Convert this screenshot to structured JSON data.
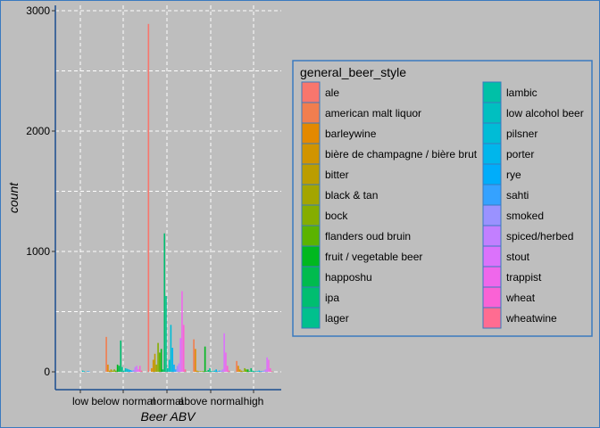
{
  "chart_data": {
    "type": "bar",
    "xlabel": "Beer ABV",
    "ylabel": "count",
    "categories": [
      "low",
      "below normal",
      "normal",
      "above normal",
      "high"
    ],
    "ylim": [
      0,
      3000
    ],
    "y_ticks": [
      0,
      1000,
      2000,
      3000
    ],
    "grid": true,
    "legend_title": "general_beer_style",
    "legend_position": "right",
    "series": [
      {
        "name": "ale",
        "color": "#F8766D",
        "values": [
          0,
          0,
          2890,
          0,
          0
        ]
      },
      {
        "name": "american malt liquor",
        "color": "#F17E4F",
        "values": [
          0,
          290,
          0,
          270,
          90
        ]
      },
      {
        "name": "barleywine",
        "color": "#E38900",
        "values": [
          0,
          60,
          30,
          190,
          50
        ]
      },
      {
        "name": "bière de champagne / bière brut",
        "color": "#D09400",
        "values": [
          0,
          10,
          100,
          10,
          20
        ]
      },
      {
        "name": "bitter",
        "color": "#BB9D00",
        "values": [
          0,
          20,
          150,
          5,
          10
        ]
      },
      {
        "name": "black & tan",
        "color": "#A3A500",
        "values": [
          0,
          10,
          60,
          5,
          5
        ]
      },
      {
        "name": "bock",
        "color": "#85AD00",
        "values": [
          0,
          20,
          240,
          5,
          30
        ]
      },
      {
        "name": "flanders oud bruin",
        "color": "#5BB300",
        "values": [
          0,
          10,
          160,
          5,
          20
        ]
      },
      {
        "name": "fruit / vegetable beer",
        "color": "#00B81F",
        "values": [
          0,
          60,
          190,
          210,
          20
        ]
      },
      {
        "name": "happoshu",
        "color": "#00BB4E",
        "values": [
          0,
          50,
          20,
          5,
          5
        ]
      },
      {
        "name": "ipa",
        "color": "#00BE70",
        "values": [
          0,
          260,
          1150,
          15,
          30
        ]
      },
      {
        "name": "lager",
        "color": "#00C08D",
        "values": [
          0,
          40,
          630,
          30,
          10
        ]
      },
      {
        "name": "lambic",
        "color": "#00C0A7",
        "values": [
          0,
          10,
          30,
          5,
          5
        ]
      },
      {
        "name": "low alcohol beer",
        "color": "#00BFC0",
        "values": [
          10,
          30,
          100,
          5,
          5
        ]
      },
      {
        "name": "pilsner",
        "color": "#00BCD6",
        "values": [
          5,
          25,
          390,
          10,
          5
        ]
      },
      {
        "name": "porter",
        "color": "#00B6EB",
        "values": [
          0,
          20,
          200,
          20,
          10
        ]
      },
      {
        "name": "rye",
        "color": "#00ADFA",
        "values": [
          5,
          15,
          60,
          5,
          5
        ]
      },
      {
        "name": "sahti",
        "color": "#35A2FF",
        "values": [
          5,
          10,
          20,
          10,
          5
        ]
      },
      {
        "name": "smoked",
        "color": "#9A92FF",
        "values": [
          0,
          15,
          50,
          10,
          10
        ]
      },
      {
        "name": "spiced/herbed",
        "color": "#C27FFF",
        "values": [
          0,
          40,
          70,
          20,
          20
        ]
      },
      {
        "name": "stout",
        "color": "#DB72FB",
        "values": [
          0,
          50,
          280,
          320,
          120
        ]
      },
      {
        "name": "trappist",
        "color": "#EF67EB",
        "values": [
          0,
          20,
          670,
          160,
          100
        ]
      },
      {
        "name": "wheat",
        "color": "#FA62D5",
        "values": [
          0,
          50,
          390,
          50,
          30
        ]
      },
      {
        "name": "wheatwine",
        "color": "#FF6C91",
        "values": [
          0,
          10,
          20,
          10,
          5
        ]
      }
    ]
  }
}
